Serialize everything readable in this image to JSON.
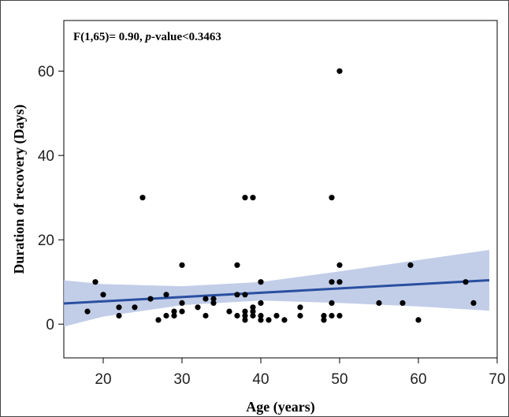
{
  "chart_data": {
    "type": "scatter",
    "annotation": {
      "prefix": "F(1,65)= 0.90, ",
      "italic": "p",
      "suffix": "-value<0.3463"
    },
    "xlabel": "Age (years)",
    "ylabel": "Duration of recovery (Days)",
    "xlim": [
      15,
      70
    ],
    "ylim": [
      -8,
      72
    ],
    "xticks": [
      20,
      30,
      40,
      50,
      60,
      70
    ],
    "yticks": [
      0,
      20,
      40,
      60
    ],
    "grid": false,
    "points": [
      [
        18,
        3
      ],
      [
        19,
        10
      ],
      [
        20,
        7
      ],
      [
        22,
        2
      ],
      [
        22,
        4
      ],
      [
        24,
        4
      ],
      [
        25,
        30
      ],
      [
        26,
        6
      ],
      [
        27,
        1
      ],
      [
        28,
        2
      ],
      [
        28,
        7
      ],
      [
        29,
        2
      ],
      [
        29,
        3
      ],
      [
        30,
        3
      ],
      [
        30,
        5
      ],
      [
        30,
        14
      ],
      [
        32,
        4
      ],
      [
        33,
        2
      ],
      [
        33,
        6
      ],
      [
        34,
        5
      ],
      [
        34,
        6
      ],
      [
        36,
        3
      ],
      [
        37,
        2
      ],
      [
        37,
        7
      ],
      [
        37,
        14
      ],
      [
        38,
        1
      ],
      [
        38,
        2
      ],
      [
        38,
        3
      ],
      [
        38,
        7
      ],
      [
        38,
        30
      ],
      [
        39,
        2
      ],
      [
        39,
        3
      ],
      [
        39,
        4
      ],
      [
        39,
        30
      ],
      [
        40,
        1
      ],
      [
        40,
        2
      ],
      [
        40,
        5
      ],
      [
        40,
        10
      ],
      [
        41,
        1
      ],
      [
        42,
        2
      ],
      [
        43,
        1
      ],
      [
        45,
        2
      ],
      [
        45,
        4
      ],
      [
        48,
        1
      ],
      [
        48,
        2
      ],
      [
        49,
        2
      ],
      [
        49,
        5
      ],
      [
        49,
        10
      ],
      [
        49,
        30
      ],
      [
        50,
        2
      ],
      [
        50,
        10
      ],
      [
        50,
        14
      ],
      [
        50,
        60
      ],
      [
        55,
        5
      ],
      [
        58,
        5
      ],
      [
        59,
        14
      ],
      [
        60,
        1
      ],
      [
        66,
        10
      ],
      [
        67,
        5
      ]
    ],
    "fit": {
      "x": [
        15,
        69
      ],
      "y": [
        4.9,
        10.4
      ]
    },
    "confidence_band": {
      "x": [
        15,
        20,
        30,
        40,
        50,
        60,
        69
      ],
      "lower": [
        -0.6,
        1.8,
        4.5,
        5.6,
        5.0,
        4.2,
        3.2
      ],
      "upper": [
        10.4,
        9.5,
        9.0,
        10.0,
        12.5,
        15.2,
        17.6
      ]
    },
    "colors": {
      "fit": "#2a4fa0",
      "band": "#b7c6e4",
      "points": "#000000"
    }
  }
}
